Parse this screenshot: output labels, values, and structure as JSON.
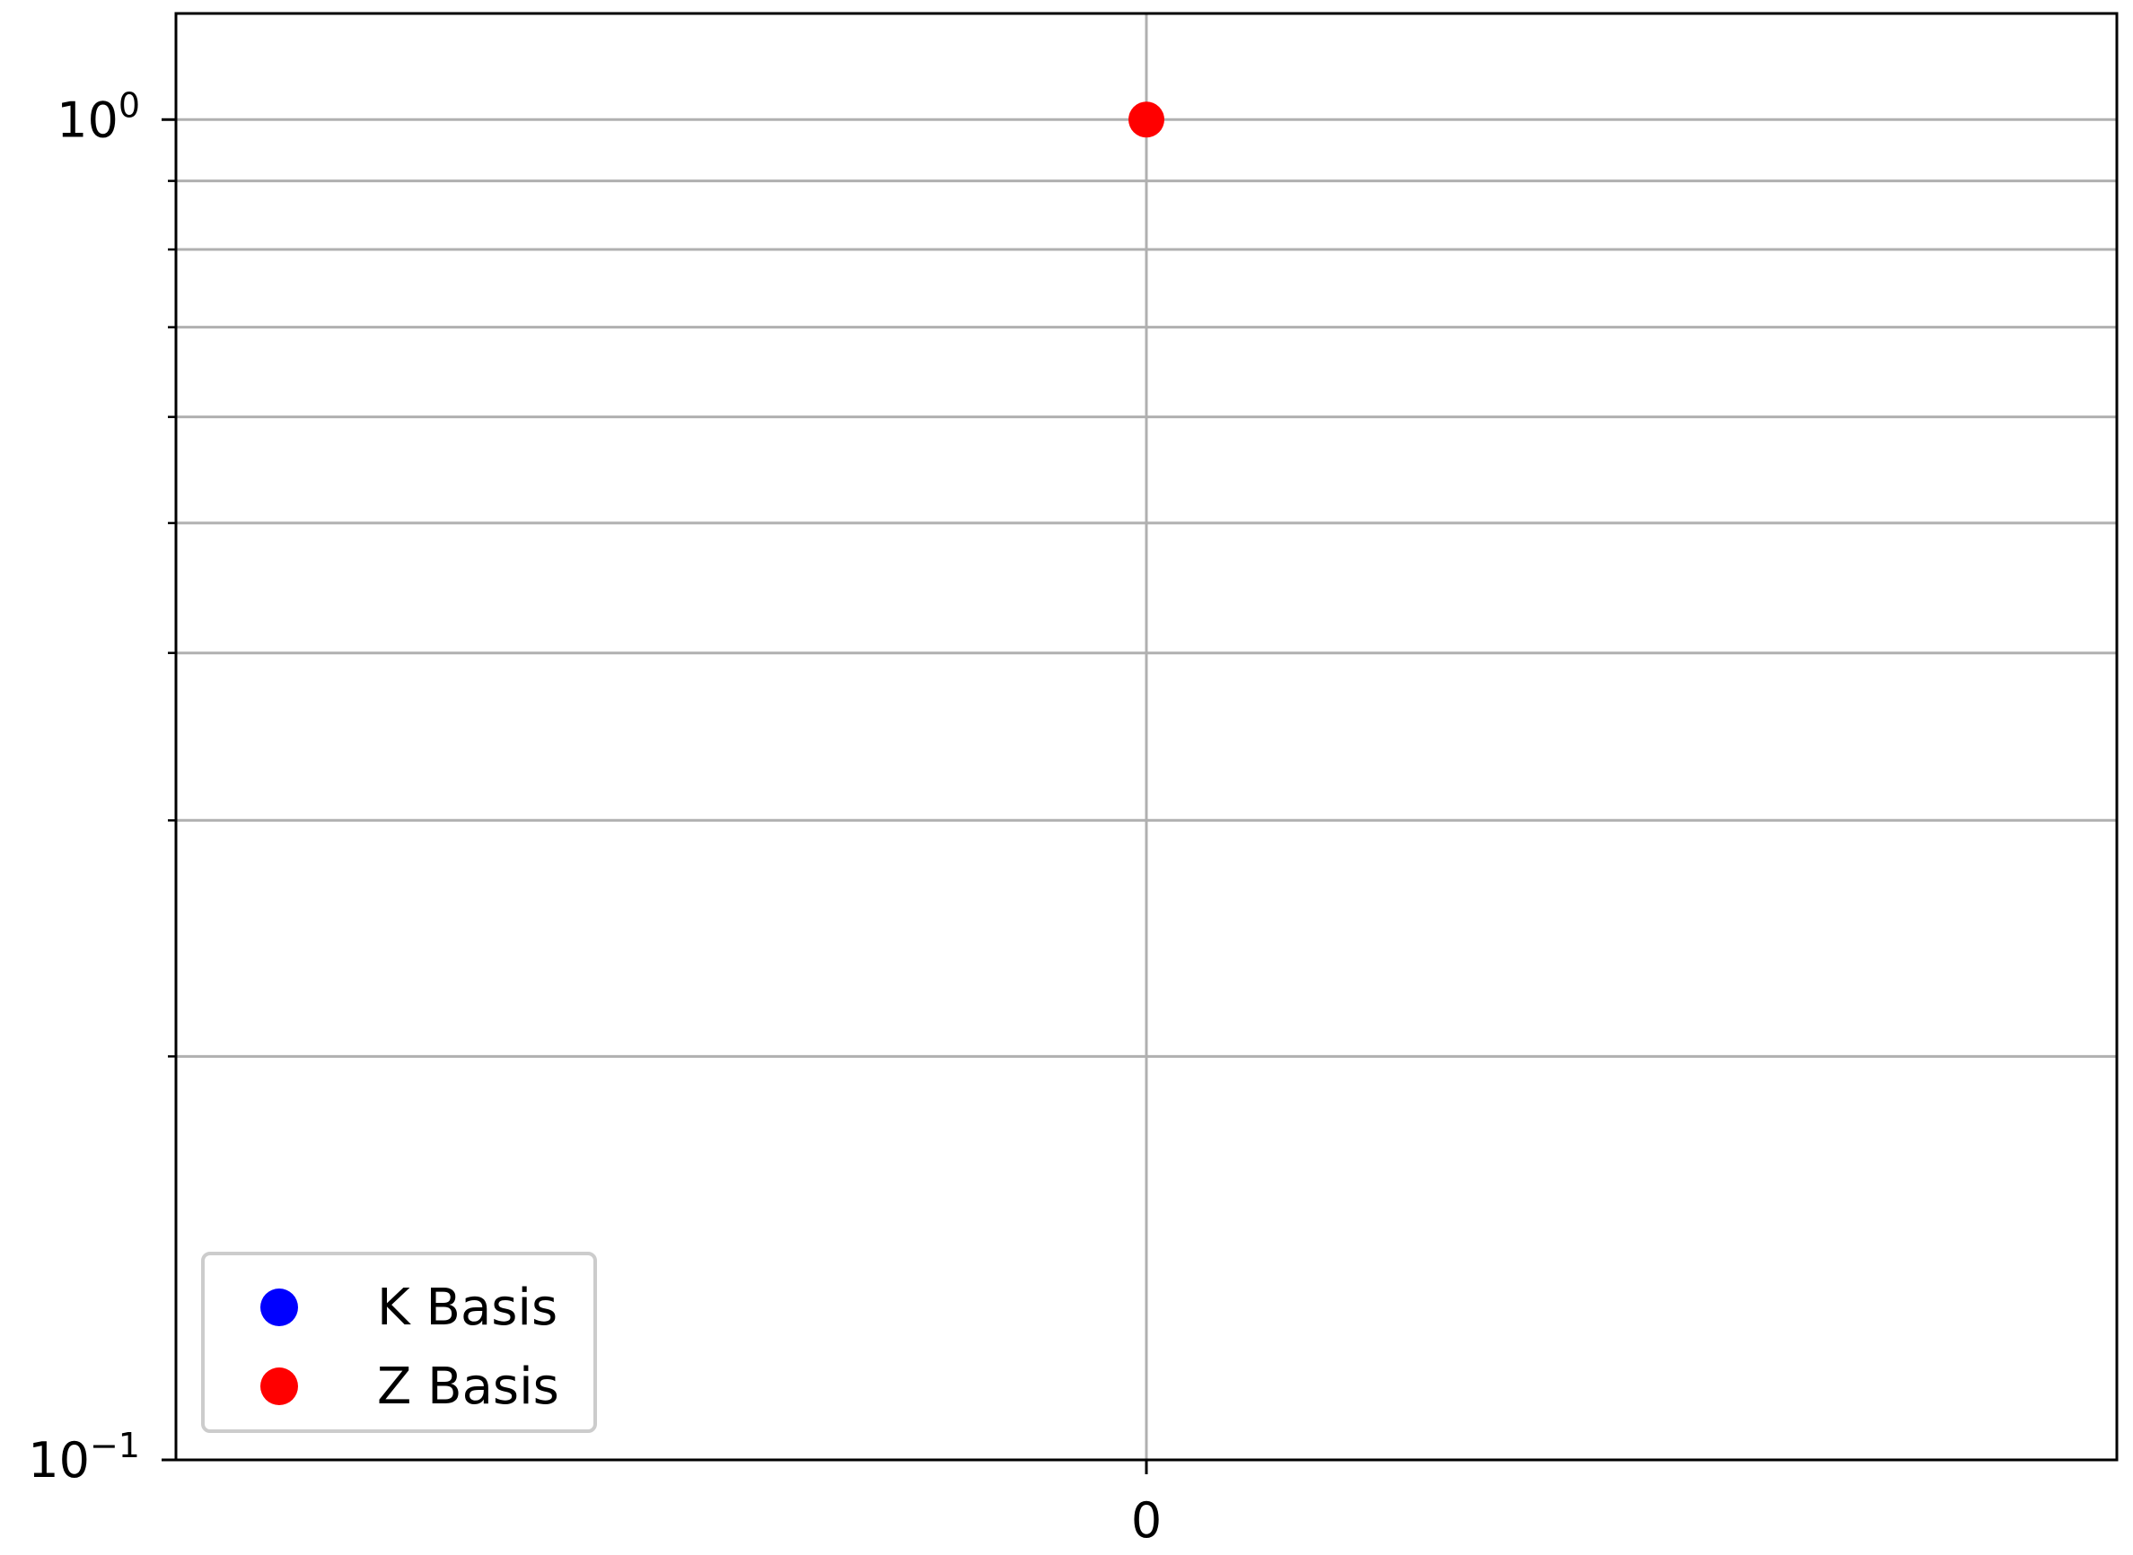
{
  "chart_data": {
    "type": "scatter",
    "title": "",
    "xlabel": "",
    "ylabel": "",
    "x_ticks": [
      "0"
    ],
    "y_scale": "log",
    "ylim": [
      0.1,
      1.2
    ],
    "y_ticks": [
      {
        "value": 1,
        "base": "10",
        "exp": "0"
      },
      {
        "value": 0.1,
        "base": "10",
        "exp": "−1"
      }
    ],
    "y_minor_ticks": [
      0.2,
      0.3,
      0.4,
      0.5,
      0.6,
      0.7,
      0.8,
      0.9
    ],
    "grid": true,
    "legend": {
      "position": "lower-left"
    },
    "series": [
      {
        "name": "K Basis",
        "color": "#0000ff",
        "points": []
      },
      {
        "name": "Z Basis",
        "color": "#ff0000",
        "points": [
          {
            "x": "0",
            "y": 1.0
          }
        ]
      }
    ]
  }
}
